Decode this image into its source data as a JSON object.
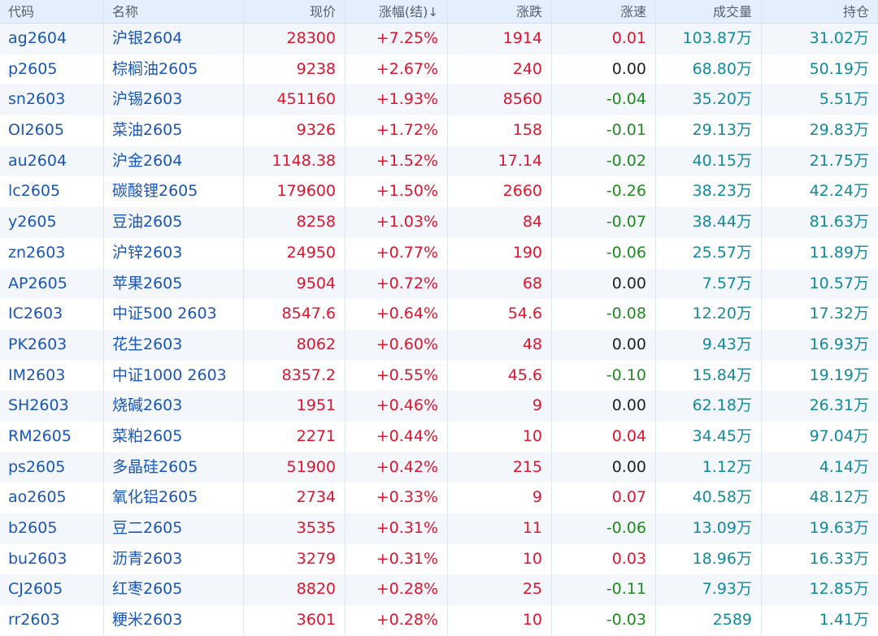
{
  "colors": {
    "up": "#e0142c",
    "down": "#1f8a1f",
    "flat": "#222222",
    "link": "#1a56b8",
    "volume": "#138a9b",
    "header_bg": "#e3effa"
  },
  "headers": {
    "code": "代码",
    "name": "名称",
    "price": "现价",
    "pct": "涨幅(结)",
    "sort_icon": "↓",
    "change": "涨跌",
    "speed": "涨速",
    "volume": "成交量",
    "open_interest": "持仓"
  },
  "rows": [
    {
      "code": "ag2604",
      "name": "沪银2604",
      "price": "28300",
      "pct": "+7.25%",
      "change": "1914",
      "speed": "0.01",
      "speed_dir": "up",
      "volume": "103.87万",
      "oi": "31.02万"
    },
    {
      "code": "p2605",
      "name": "棕榈油2605",
      "price": "9238",
      "pct": "+2.67%",
      "change": "240",
      "speed": "0.00",
      "speed_dir": "flat",
      "volume": "68.80万",
      "oi": "50.19万"
    },
    {
      "code": "sn2603",
      "name": "沪锡2603",
      "price": "451160",
      "pct": "+1.93%",
      "change": "8560",
      "speed": "-0.04",
      "speed_dir": "down",
      "volume": "35.20万",
      "oi": "5.51万"
    },
    {
      "code": "OI2605",
      "name": "菜油2605",
      "price": "9326",
      "pct": "+1.72%",
      "change": "158",
      "speed": "-0.01",
      "speed_dir": "down",
      "volume": "29.13万",
      "oi": "29.83万"
    },
    {
      "code": "au2604",
      "name": "沪金2604",
      "price": "1148.38",
      "pct": "+1.52%",
      "change": "17.14",
      "speed": "-0.02",
      "speed_dir": "down",
      "volume": "40.15万",
      "oi": "21.75万"
    },
    {
      "code": "lc2605",
      "name": "碳酸锂2605",
      "price": "179600",
      "pct": "+1.50%",
      "change": "2660",
      "speed": "-0.26",
      "speed_dir": "down",
      "volume": "38.23万",
      "oi": "42.24万"
    },
    {
      "code": "y2605",
      "name": "豆油2605",
      "price": "8258",
      "pct": "+1.03%",
      "change": "84",
      "speed": "-0.07",
      "speed_dir": "down",
      "volume": "38.44万",
      "oi": "81.63万"
    },
    {
      "code": "zn2603",
      "name": "沪锌2603",
      "price": "24950",
      "pct": "+0.77%",
      "change": "190",
      "speed": "-0.06",
      "speed_dir": "down",
      "volume": "25.57万",
      "oi": "11.89万"
    },
    {
      "code": "AP2605",
      "name": "苹果2605",
      "price": "9504",
      "pct": "+0.72%",
      "change": "68",
      "speed": "0.00",
      "speed_dir": "flat",
      "volume": "7.57万",
      "oi": "10.57万"
    },
    {
      "code": "IC2603",
      "name": "中证500 2603",
      "price": "8547.6",
      "pct": "+0.64%",
      "change": "54.6",
      "speed": "-0.08",
      "speed_dir": "down",
      "volume": "12.20万",
      "oi": "17.32万"
    },
    {
      "code": "PK2603",
      "name": "花生2603",
      "price": "8062",
      "pct": "+0.60%",
      "change": "48",
      "speed": "0.00",
      "speed_dir": "flat",
      "volume": "9.43万",
      "oi": "16.93万"
    },
    {
      "code": "IM2603",
      "name": "中证1000 2603",
      "price": "8357.2",
      "pct": "+0.55%",
      "change": "45.6",
      "speed": "-0.10",
      "speed_dir": "down",
      "volume": "15.84万",
      "oi": "19.19万"
    },
    {
      "code": "SH2603",
      "name": "烧碱2603",
      "price": "1951",
      "pct": "+0.46%",
      "change": "9",
      "speed": "0.00",
      "speed_dir": "flat",
      "volume": "62.18万",
      "oi": "26.31万"
    },
    {
      "code": "RM2605",
      "name": "菜粕2605",
      "price": "2271",
      "pct": "+0.44%",
      "change": "10",
      "speed": "0.04",
      "speed_dir": "up",
      "volume": "34.45万",
      "oi": "97.04万"
    },
    {
      "code": "ps2605",
      "name": "多晶硅2605",
      "price": "51900",
      "pct": "+0.42%",
      "change": "215",
      "speed": "0.00",
      "speed_dir": "flat",
      "volume": "1.12万",
      "oi": "4.14万"
    },
    {
      "code": "ao2605",
      "name": "氧化铝2605",
      "price": "2734",
      "pct": "+0.33%",
      "change": "9",
      "speed": "0.07",
      "speed_dir": "up",
      "volume": "40.58万",
      "oi": "48.12万"
    },
    {
      "code": "b2605",
      "name": "豆二2605",
      "price": "3535",
      "pct": "+0.31%",
      "change": "11",
      "speed": "-0.06",
      "speed_dir": "down",
      "volume": "13.09万",
      "oi": "19.63万"
    },
    {
      "code": "bu2603",
      "name": "沥青2603",
      "price": "3279",
      "pct": "+0.31%",
      "change": "10",
      "speed": "0.03",
      "speed_dir": "up",
      "volume": "18.96万",
      "oi": "16.33万"
    },
    {
      "code": "CJ2605",
      "name": "红枣2605",
      "price": "8820",
      "pct": "+0.28%",
      "change": "25",
      "speed": "-0.11",
      "speed_dir": "down",
      "volume": "7.93万",
      "oi": "12.85万"
    },
    {
      "code": "rr2603",
      "name": "粳米2603",
      "price": "3601",
      "pct": "+0.28%",
      "change": "10",
      "speed": "-0.03",
      "speed_dir": "down",
      "volume": "2589",
      "oi": "1.41万"
    }
  ]
}
